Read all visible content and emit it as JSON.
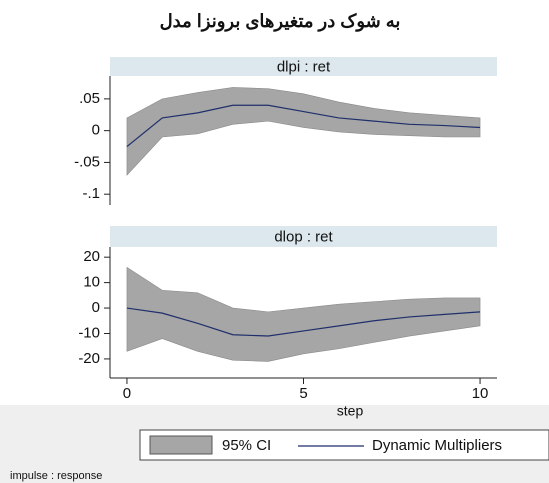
{
  "title": "به شوک در متغیرهای برونزا مدل",
  "xlabel": "step",
  "note": "impulse : response",
  "legend": [
    {
      "name": "95% CI",
      "color": "#a6a6a6"
    },
    {
      "name": "Dynamic Multipliers",
      "color": "#1f2f6b"
    }
  ],
  "chart_data": [
    {
      "type": "line",
      "subtitle": "dlpi : ret",
      "x": [
        0,
        1,
        2,
        3,
        4,
        5,
        6,
        7,
        8,
        9,
        10
      ],
      "values": [
        -0.025,
        0.02,
        0.028,
        0.04,
        0.04,
        0.03,
        0.02,
        0.015,
        0.01,
        0.008,
        0.005
      ],
      "upper": [
        0.02,
        0.05,
        0.06,
        0.068,
        0.066,
        0.058,
        0.045,
        0.035,
        0.028,
        0.024,
        0.02
      ],
      "lower": [
        -0.07,
        -0.01,
        -0.005,
        0.01,
        0.015,
        0.005,
        -0.002,
        -0.006,
        -0.008,
        -0.01,
        -0.01
      ],
      "xlim": [
        -0.48,
        10.48
      ],
      "ylim": [
        -0.117,
        0.086
      ],
      "yticks": [
        {
          "value": 0.05,
          "label": ".05"
        },
        0,
        {
          "value": -0.05,
          "label": "-.05"
        },
        {
          "value": -0.1,
          "label": "-.1"
        }
      ]
    },
    {
      "type": "line",
      "subtitle": "dlop : ret",
      "x": [
        0,
        1,
        2,
        3,
        4,
        5,
        6,
        7,
        8,
        9,
        10
      ],
      "values": [
        0,
        -2,
        -6,
        -10.5,
        -11,
        -9,
        -7,
        -5,
        -3.5,
        -2.5,
        -1.5
      ],
      "upper": [
        16,
        7,
        6,
        0,
        -1.5,
        0,
        1.5,
        2.5,
        3.5,
        4,
        4
      ],
      "lower": [
        -17,
        -12,
        -17,
        -20.5,
        -21,
        -18,
        -16,
        -13.5,
        -11,
        -9,
        -7
      ],
      "xlim": [
        -0.48,
        10.48
      ],
      "ylim": [
        -27.5,
        24
      ],
      "yticks": [
        20,
        10,
        0,
        -10,
        -20
      ],
      "xticks": [
        0,
        5,
        10
      ]
    }
  ]
}
